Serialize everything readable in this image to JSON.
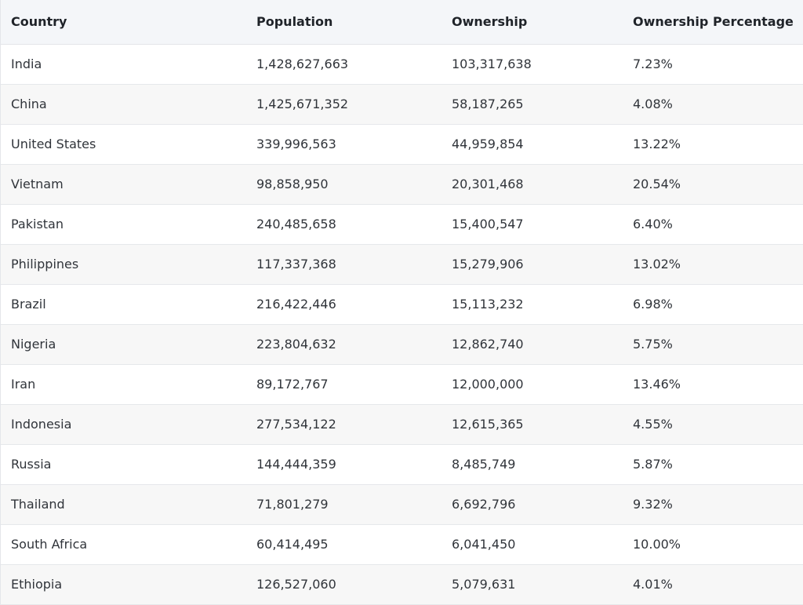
{
  "table": {
    "headers": [
      "Country",
      "Population",
      "Ownership",
      "Ownership Percentage"
    ],
    "rows": [
      [
        "India",
        "1,428,627,663",
        "103,317,638",
        "7.23%"
      ],
      [
        "China",
        "1,425,671,352",
        "58,187,265",
        "4.08%"
      ],
      [
        "United States",
        "339,996,563",
        "44,959,854",
        "13.22%"
      ],
      [
        "Vietnam",
        "98,858,950",
        "20,301,468",
        "20.54%"
      ],
      [
        "Pakistan",
        "240,485,658",
        "15,400,547",
        "6.40%"
      ],
      [
        "Philippines",
        "117,337,368",
        "15,279,906",
        "13.02%"
      ],
      [
        "Brazil",
        "216,422,446",
        "15,113,232",
        "6.98%"
      ],
      [
        "Nigeria",
        "223,804,632",
        "12,862,740",
        "5.75%"
      ],
      [
        "Iran",
        "89,172,767",
        "12,000,000",
        "13.46%"
      ],
      [
        "Indonesia",
        "277,534,122",
        "12,615,365",
        "4.55%"
      ],
      [
        "Russia",
        "144,444,359",
        "8,485,749",
        "5.87%"
      ],
      [
        "Thailand",
        "71,801,279",
        "6,692,796",
        "9.32%"
      ],
      [
        "South Africa",
        "60,414,495",
        "6,041,450",
        "10.00%"
      ],
      [
        "Ethiopia",
        "126,527,060",
        "5,079,631",
        "4.01%"
      ]
    ]
  },
  "colors": {
    "header_bg": "#f4f6f9",
    "stripe_bg": "#f7f7f7",
    "border": "#e6e8eb",
    "text": "#30343a"
  }
}
